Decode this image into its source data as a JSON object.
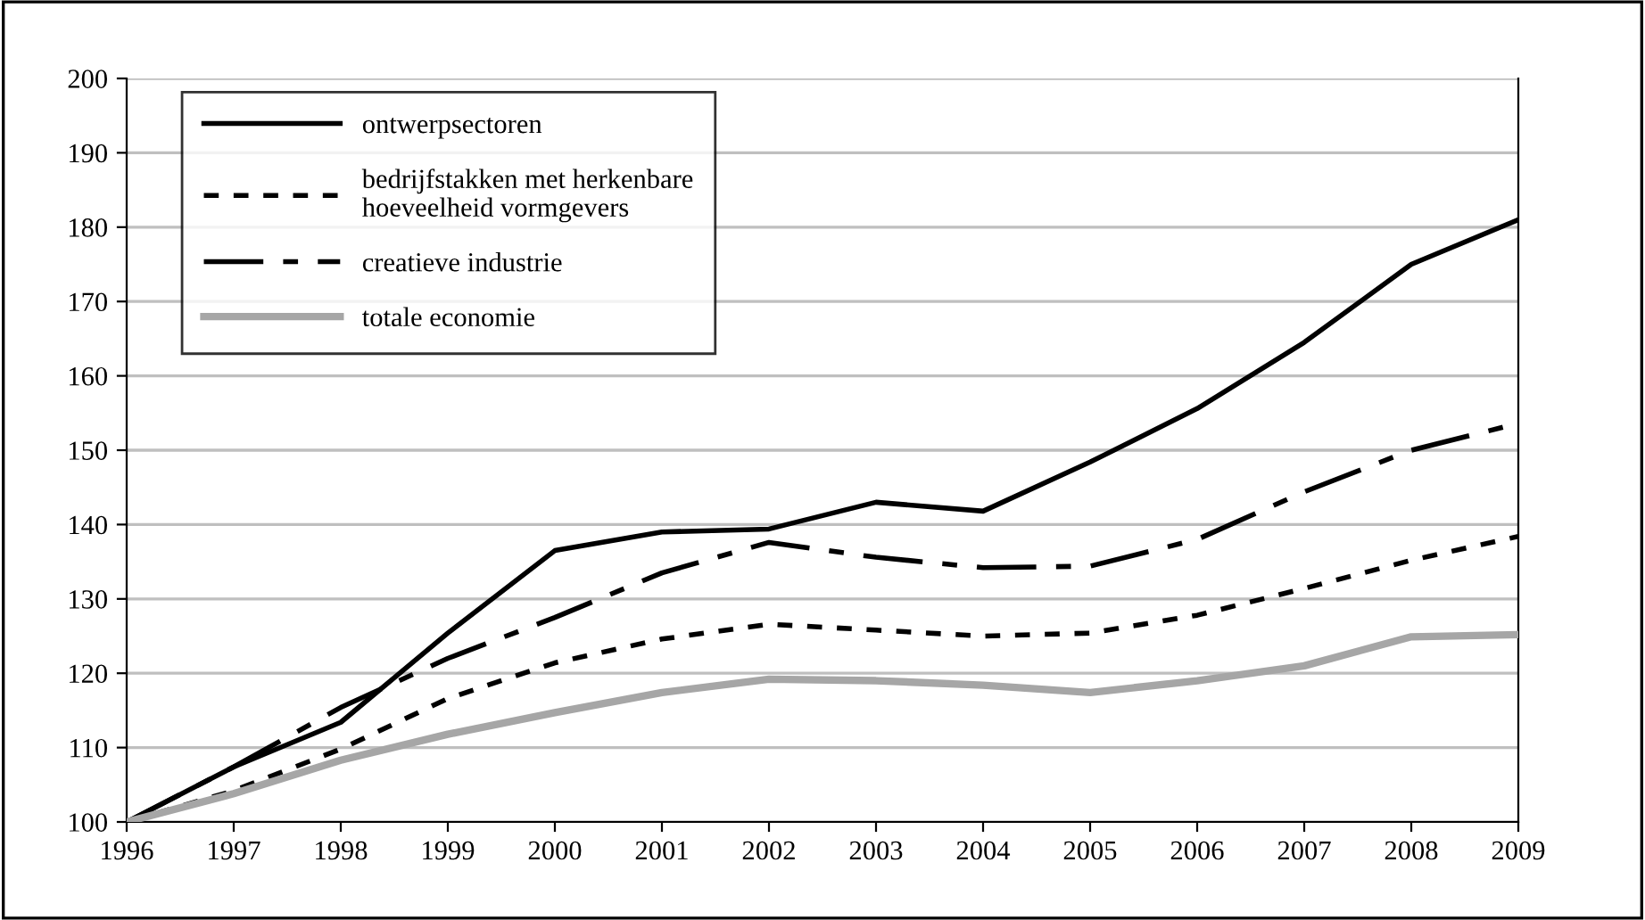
{
  "chart_data": {
    "type": "line",
    "x": [
      1996,
      1997,
      1998,
      1999,
      2000,
      2001,
      2002,
      2003,
      2004,
      2005,
      2006,
      2007,
      2008,
      2009
    ],
    "series": [
      {
        "name": "ontwerpsectoren",
        "color": "#000000",
        "line_style": "solid",
        "values": [
          100,
          107.4,
          113.4,
          125.4,
          136.5,
          139,
          139.4,
          143,
          141.8,
          148.4,
          155.6,
          164.5,
          175,
          181
        ]
      },
      {
        "name": "bedrijfstakken met herkenbare\nhoeveelheid vormgevers",
        "color": "#000000",
        "line_style": "dotted",
        "values": [
          100,
          104.2,
          109.8,
          116.6,
          121.4,
          124.6,
          126.6,
          125.8,
          125,
          125.4,
          127.8,
          131.4,
          135.2,
          138.4
        ]
      },
      {
        "name": "creatieve industrie",
        "color": "#000000",
        "line_style": "dashed",
        "values": [
          100,
          107.4,
          115.4,
          122,
          127.5,
          133.5,
          137.6,
          135.6,
          134.2,
          134.4,
          138,
          144.4,
          150,
          153.6
        ]
      },
      {
        "name": "totale economie",
        "color": "#a6a6a6",
        "line_style": "solid",
        "values": [
          100,
          103.8,
          108.3,
          111.8,
          114.7,
          117.4,
          119.2,
          119,
          118.4,
          117.4,
          119,
          121,
          124.9,
          125.2
        ]
      }
    ],
    "xlim": [
      1996,
      2009
    ],
    "xticks": [
      1996,
      1997,
      1998,
      1999,
      2000,
      2001,
      2002,
      2003,
      2004,
      2005,
      2006,
      2007,
      2008,
      2009
    ],
    "ylim": [
      100,
      200
    ],
    "yticks": [
      100,
      110,
      120,
      130,
      140,
      150,
      160,
      170,
      180,
      190,
      200
    ],
    "grid": "y",
    "legend": "top left",
    "marker": "none"
  }
}
